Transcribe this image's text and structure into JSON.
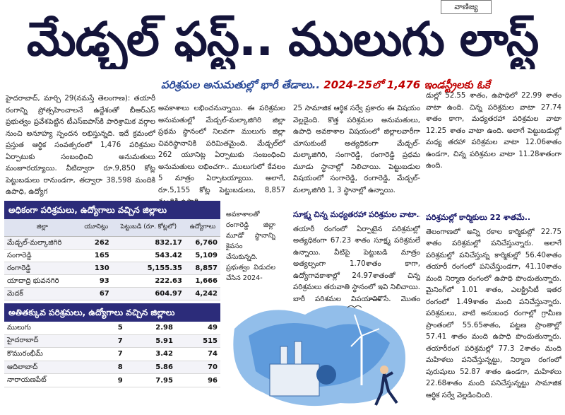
{
  "section_tag": "వాణిజ్య",
  "headline": "మేడ్చల్ ఫస్ట్.. ములుగు లాస్ట్",
  "subhead": {
    "part1": "పరిశ్రమల అనుమతుల్లో భారీ తేడాలు.. ",
    "part2": "2024-25లో 1,476 ఇండస్ట్రీలకు ఓకే"
  },
  "col1": "హైదరాబాద్, మార్చి 29(నమస్తే తెలంగాణ): తయారీ రంగాన్ని ప్రోత్సహించాలనే ఉద్దేశంతో బీఆర్ఎస్ ప్రభుత్వం ప్రవేశపెట్టిన టీఎస్ఐపాస్‌కి పారిశ్రామిక వర్గాల నుంచి అనూహ్య స్పందన లభిస్తున్నది. ఇదే క్రమంలో ప్రస్తుత ఆర్థిక సంవత్సరంలో 1,476 పరిశ్రమల ఏర్పాటుకు సంబంధించి అనుమతులు మంజూరయ్యాయి. వీటిద్వారా రూ.9,850 కోట్ల పెట్టుబడులు రానుండగా, తద్వారా 38,598 మందికి ఉపాధి, ఉద్యోగ",
  "col2": "అవకాశాలు లభించనున్నాయి. ఈ పరిశ్రమల అనుమతుల్లో మేడ్చల్-మల్కాజిగిరి జిల్లా ప్రథమ స్థానంలో నిలవగా ములుగు జిల్లా చివరిస్థానానికి పరిమితమైంది. మేడ్చల్‌లో 262 యూనిట్ల ఏర్పాటుకు సంబంధించి అనుమతులు లభించగా.. ములుగులో కేవలం 5 మాత్రం ఏర్పాటయ్యాయి. అలాగే, రూ.5,155 కోట్ల పెట్టుబడులు, 8,857 మందికి ఉపాధి",
  "col2b": "అవకాశాలతో రంగారెడ్డి జిల్లా మూడో స్థానాన్ని కైవసం చేసుకున్నది. ప్రభుత్వం విడుదల చేసిన 2024-",
  "col3": "25 సామాజిక ఆర్థిక సర్వే ప్రకారం ఈ విషయం వెల్లడైంది. కొత్త పరిశ్రమల అనుమతులు, ఉపాధి అవకాశాల విషయంలో జిల్లాలవారీగా చూసుకుంటే అత్యధికంగా మేడ్చల్-మల్కాజిగిరి, సంగారెడ్డి, రంగారెడ్డి ప్రథమ మూడు స్థానాల్లో నిలిచాయి. పెట్టుబడుల విషయంలో సంగారెడ్డి, రంగారెడ్డి, మేడ్చల్-మల్కాజిగిరి 1, 3 స్థానాల్లో ఉన్నాయి.",
  "col3b_head": "సూక్ష్మ చిన్న మధ్యతరహా పరిశ్రమల వాటా..",
  "col3b": "తయారీ రంగంలో ఏర్పాటైన పరిశ్రమల్లో అత్యధికంగా 67.23 శాతం సూక్ష్మ పరిశ్రమలే ఉన్నాయి. వీటిపై పెట్టుబడి మాత్రం అత్యల్పంగా 1.70శాతం కాగా, ఉద్యోగావకాశాల్లో 24.97శాతంతో చిన్న పరిశ్రమలు తరువాతి స్థానంలో ఇవి నిలిచాయి. భారీ పరిశ్రమల విషయానికొస్తే, మొత్తం యూనిట్లలో వీటి వాటా 0.96 శాతం మాత్రమే కాగా, పెట్టుబ",
  "col4": "డుల్లో 52.55 శాతం, ఉపాధిలో 22.99 శాతం వాటా ఉంది. చిన్న పరిశ్రమల వాటా 27.74 శాతం కాగా, మధ్యతరహా పరిశ్రమల వాటా 12.25 శాతం వాటా ఉంది. అలాగే పెట్టుబడుల్లో మధ్య తరహా పరిశ్రమల వాటా 12.06శాతం ఉండగా, చిన్న పరిశ్రమల వాటా 11.28శాతంగా ఉంది.",
  "col4b_head": "పరిశ్రమల్లో కార్మికులు 22 శాతమే..",
  "col4b": "తెలంగాణలో అన్ని రకాల కార్మికుల్లో 22.75 శాతం పరిశ్రమల్లో పనిచేస్తున్నారు. అలాగే పరిశ్రమల్లో పనిచేస్తున్న కార్మికుల్లో 56.40శాతం తయారీ రంగంలో పనిచేస్తుండగా, 41.10శాతం మంది నిర్మాణ రంగంలో ఉపాధి పొందుతున్నారు. మైనింగ్‌లో 1.01 శాతం, ఎలక్ట్రిసిటీ ఇతర రంగంలో 1.49శాతం మంది పనిచేస్తున్నారు. పరిశ్రమలు, వాటి అనుబంధ రంగాల్లో గ్రామీణ ప్రాంతంలో 55.65శాతం, పట్టణ ప్రాంతాల్లో 57.41 శాతం మంది ఉపాధి పొందుతున్నారు. తయారీరంగ పరిశ్రమల్లో 77.3 2శాతం మంది మహిళలు పనిచేస్తున్నట్టు, నిర్మాణ రంగంలో పురుషులు 52.87 శాతం ఉండగా, మహిళలు 22.68శాతం మంది పనిచేస్తున్నట్టు సామాజిక ఆర్థిక సర్వే వెల్లడించింది.",
  "table_top": {
    "title": "అధికంగా పరిశ్రమలు, ఉద్యోగాలు వచ్చిన జిల్లాలు",
    "headers": [
      "జిల్లా",
      "యూనిట్లు",
      "పెట్టుబడి (రూ. కోట్లలో)",
      "ఉద్యోగాలు"
    ],
    "rows": [
      [
        "మేడ్చల్-మల్కాజిగిరి",
        "262",
        "832.17",
        "6,760"
      ],
      [
        "సంగారెడ్డి",
        "165",
        "543.42",
        "5,109"
      ],
      [
        "రంగారెడ్డి",
        "130",
        "5,155.35",
        "8,857"
      ],
      [
        "యాదాద్రి భువనగిరి",
        "93",
        "222.63",
        "1,666"
      ],
      [
        "మెదక్",
        "67",
        "604.97",
        "4,242"
      ]
    ]
  },
  "table_bottom": {
    "title": "అతితక్కువ పరిశ్రమలు, ఉద్యోగాలు వచ్చిన జిల్లాలు",
    "rows": [
      [
        "ములుగు",
        "5",
        "2.98",
        "49"
      ],
      [
        "హైదరాబాద్",
        "7",
        "5.91",
        "515"
      ],
      [
        "కొమురంభీమ్",
        "7",
        "3.42",
        "74"
      ],
      [
        "ఆదిలాబాద్",
        "8",
        "5.86",
        "70"
      ],
      [
        "నారాయణపేట్",
        "9",
        "7.95",
        "96"
      ]
    ]
  },
  "colors": {
    "headline": "#14143a",
    "table_title_bg": "#2c2c7a",
    "subhead_blue": "#2a4a98",
    "subhead_red": "#c00000"
  }
}
